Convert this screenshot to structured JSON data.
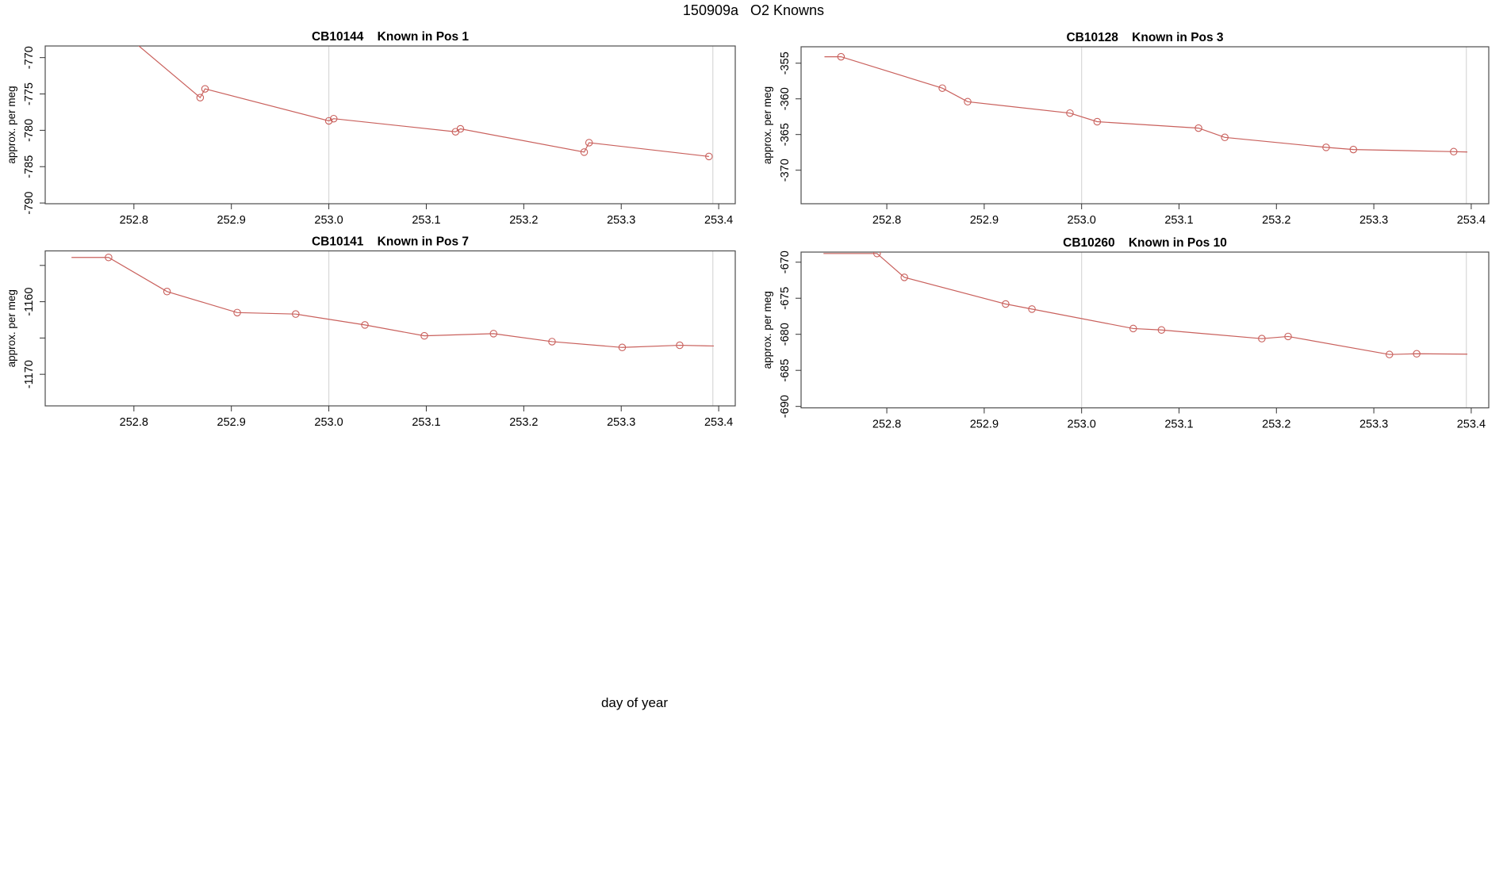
{
  "page": {
    "title": "150909a   O2 Knowns",
    "xlabel": "day of year"
  },
  "colors": {
    "series": "#c9605c",
    "gridline": "#d8d8d8",
    "axis_box": "#4d4d4d",
    "text": "#000000"
  },
  "chart_data": [
    {
      "type": "line",
      "title": "CB10144    Known in Pos 1",
      "ylabel": "approx. per meg",
      "series_color": "#c9605c",
      "gridline_color": "#d8d8d8",
      "marker": "open-circle",
      "xlim": [
        252.709,
        253.417
      ],
      "ylim": [
        -790.1,
        -768.4
      ],
      "xticks": [
        252.8,
        252.9,
        253.0,
        253.1,
        253.2,
        253.3,
        253.4
      ],
      "xtick_labels": [
        "252.8",
        "252.9",
        "253.0",
        "253.1",
        "253.2",
        "253.3",
        "253.4"
      ],
      "yticks": [
        {
          "v": -770,
          "label": "-770"
        },
        {
          "v": -775,
          "label": "-775"
        },
        {
          "v": -780,
          "label": "-780"
        },
        {
          "v": -785,
          "label": "-785"
        },
        {
          "v": -790,
          "label": "-790"
        }
      ],
      "vlines": [
        253.0,
        253.394
      ],
      "points": [
        {
          "x": 252.775,
          "y": -765.0,
          "m": false
        },
        {
          "x": 252.868,
          "y": -775.5
        },
        {
          "x": 252.873,
          "y": -774.3
        },
        {
          "x": 253.0,
          "y": -778.7
        },
        {
          "x": 253.005,
          "y": -778.4
        },
        {
          "x": 253.13,
          "y": -780.2
        },
        {
          "x": 253.135,
          "y": -779.8
        },
        {
          "x": 253.262,
          "y": -783.0
        },
        {
          "x": 253.267,
          "y": -781.7
        },
        {
          "x": 253.39,
          "y": -783.6
        }
      ]
    },
    {
      "type": "line",
      "title": "CB10128    Known in Pos 3",
      "ylabel": "approx. per meg",
      "series_color": "#c9605c",
      "gridline_color": "#d8d8d8",
      "marker": "open-circle",
      "xlim": [
        252.712,
        253.418
      ],
      "ylim": [
        -374.7,
        -352.7
      ],
      "xticks": [
        252.8,
        252.9,
        253.0,
        253.1,
        253.2,
        253.3,
        253.4
      ],
      "xtick_labels": [
        "252.8",
        "252.9",
        "253.0",
        "253.1",
        "253.2",
        "253.3",
        "253.4"
      ],
      "yticks": [
        {
          "v": -355,
          "label": "-355"
        },
        {
          "v": -360,
          "label": "-360"
        },
        {
          "v": -365,
          "label": "-365"
        },
        {
          "v": -370,
          "label": "-370"
        }
      ],
      "vlines": [
        253.0,
        253.395
      ],
      "points": [
        {
          "x": 252.736,
          "y": -354.1,
          "m": false
        },
        {
          "x": 252.753,
          "y": -354.1
        },
        {
          "x": 252.857,
          "y": -358.5
        },
        {
          "x": 252.883,
          "y": -360.4
        },
        {
          "x": 252.988,
          "y": -362.0
        },
        {
          "x": 253.016,
          "y": -363.2
        },
        {
          "x": 253.12,
          "y": -364.1
        },
        {
          "x": 253.147,
          "y": -365.4
        },
        {
          "x": 253.251,
          "y": -366.8
        },
        {
          "x": 253.279,
          "y": -367.1
        },
        {
          "x": 253.382,
          "y": -367.4
        },
        {
          "x": 253.396,
          "y": -367.45,
          "m": false
        }
      ]
    },
    {
      "type": "line",
      "title": "CB10141    Known in Pos 7",
      "ylabel": "approx. per meg",
      "series_color": "#c9605c",
      "gridline_color": "#d8d8d8",
      "marker": "open-circle",
      "xlim": [
        252.709,
        253.417
      ],
      "ylim": [
        -1174.35,
        -1153.0
      ],
      "xticks": [
        252.8,
        252.9,
        253.0,
        253.1,
        253.2,
        253.3,
        253.4
      ],
      "xtick_labels": [
        "252.8",
        "252.9",
        "253.0",
        "253.1",
        "253.2",
        "253.3",
        "253.4"
      ],
      "yticks": [
        {
          "v": -1155,
          "label": ""
        },
        {
          "v": -1160,
          "label": "-1160"
        },
        {
          "v": -1165,
          "label": ""
        },
        {
          "v": -1170,
          "label": "-1170"
        }
      ],
      "vlines": [
        253.0,
        253.394
      ],
      "points": [
        {
          "x": 252.736,
          "y": -1153.9,
          "m": false
        },
        {
          "x": 252.774,
          "y": -1153.9
        },
        {
          "x": 252.834,
          "y": -1158.6
        },
        {
          "x": 252.906,
          "y": -1161.5
        },
        {
          "x": 252.966,
          "y": -1161.7
        },
        {
          "x": 253.037,
          "y": -1163.2
        },
        {
          "x": 253.098,
          "y": -1164.7
        },
        {
          "x": 253.169,
          "y": -1164.4
        },
        {
          "x": 253.229,
          "y": -1165.5
        },
        {
          "x": 253.301,
          "y": -1166.3
        },
        {
          "x": 253.36,
          "y": -1166.0
        },
        {
          "x": 253.395,
          "y": -1166.1,
          "m": false
        }
      ]
    },
    {
      "type": "line",
      "title": "CB10260    Known in Pos 10",
      "ylabel": "approx. per meg",
      "series_color": "#c9605c",
      "gridline_color": "#d8d8d8",
      "marker": "open-circle",
      "xlim": [
        252.712,
        253.418
      ],
      "ylim": [
        -690.2,
        -668.6
      ],
      "xticks": [
        252.8,
        252.9,
        253.0,
        253.1,
        253.2,
        253.3,
        253.4
      ],
      "xtick_labels": [
        "252.8",
        "252.9",
        "253.0",
        "253.1",
        "253.2",
        "253.3",
        "253.4"
      ],
      "yticks": [
        {
          "v": -670,
          "label": "-670"
        },
        {
          "v": -675,
          "label": "-675"
        },
        {
          "v": -680,
          "label": "-680"
        },
        {
          "v": -685,
          "label": "-685"
        },
        {
          "v": -690,
          "label": "-690"
        }
      ],
      "vlines": [
        253.0,
        253.395
      ],
      "points": [
        {
          "x": 252.735,
          "y": -668.8,
          "m": false
        },
        {
          "x": 252.79,
          "y": -668.8
        },
        {
          "x": 252.818,
          "y": -672.1
        },
        {
          "x": 252.922,
          "y": -675.8
        },
        {
          "x": 252.949,
          "y": -676.5
        },
        {
          "x": 253.053,
          "y": -679.2
        },
        {
          "x": 253.082,
          "y": -679.4
        },
        {
          "x": 253.185,
          "y": -680.6
        },
        {
          "x": 253.212,
          "y": -680.3
        },
        {
          "x": 253.316,
          "y": -682.8
        },
        {
          "x": 253.344,
          "y": -682.7
        },
        {
          "x": 253.396,
          "y": -682.75,
          "m": false
        }
      ]
    }
  ]
}
